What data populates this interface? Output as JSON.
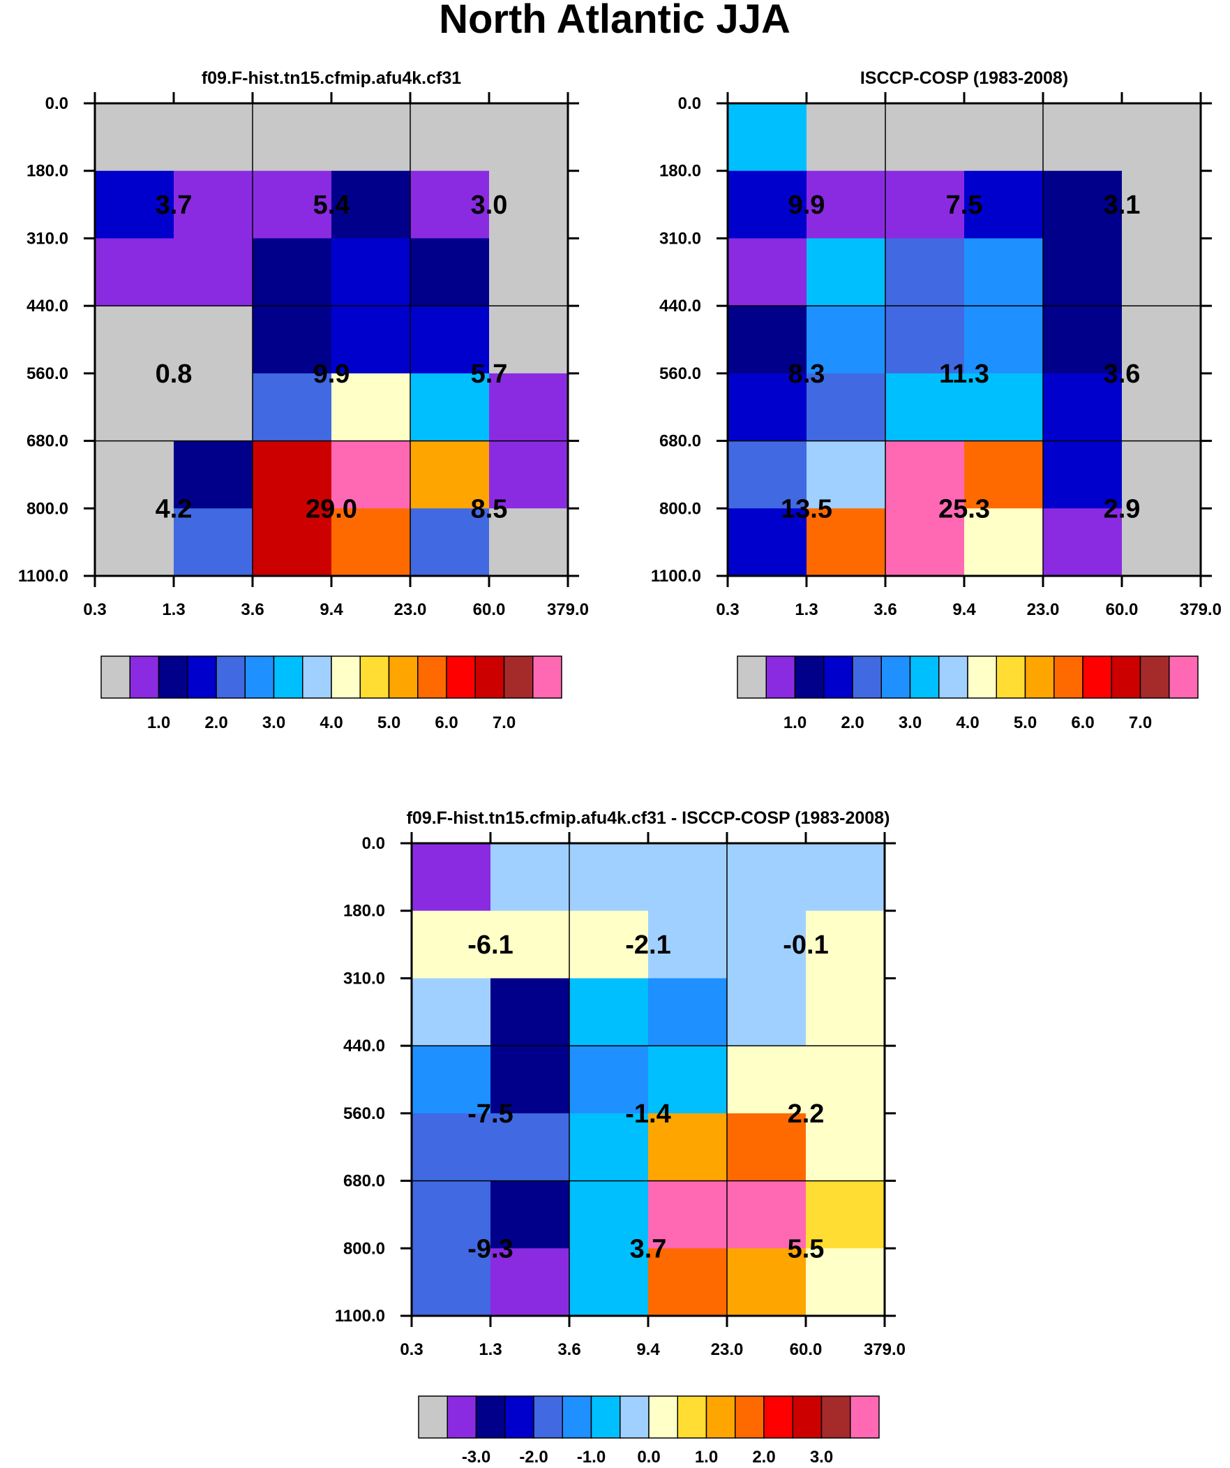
{
  "figure": {
    "title": "North Atlantic JJA",
    "colors": {
      "gray": "#c8c8c8",
      "violet": "#8a2be2",
      "navy": "#00008b",
      "medblue": "#0000cd",
      "royalblue": "#4169e1",
      "dodgerblue": "#1e90ff",
      "deepskyblue": "#00bfff",
      "lightskyblue": "#a0d0ff",
      "lightyellow": "#ffffc8",
      "gold": "#ffdd33",
      "orange": "#ffa500",
      "darkorange": "#ff6a00",
      "red": "#ff0000",
      "crimson": "#cd0000",
      "brown": "#a52a2a",
      "pink": "#ff69b4"
    }
  },
  "chart_data": [
    {
      "type": "heatmap",
      "id": "model",
      "title": "f09.F-hist.tn15.cfmip.afu4k.cf31",
      "xlabel": "",
      "ylabel": "",
      "x_ticks": [
        "0.3",
        "1.3",
        "3.6",
        "9.4",
        "23.0",
        "60.0",
        "379.0"
      ],
      "y_ticks": [
        "0.0",
        "180.0",
        "310.0",
        "440.0",
        "560.0",
        "680.0",
        "800.0",
        "1100.0"
      ],
      "cells": [
        [
          "gray",
          "gray",
          "gray",
          "gray",
          "gray",
          "gray"
        ],
        [
          "medblue",
          "violet",
          "violet",
          "navy",
          "violet",
          "gray"
        ],
        [
          "violet",
          "violet",
          "navy",
          "medblue",
          "navy",
          "gray"
        ],
        [
          "gray",
          "gray",
          "navy",
          "medblue",
          "medblue",
          "gray"
        ],
        [
          "gray",
          "gray",
          "royalblue",
          "lightyellow",
          "deepskyblue",
          "violet"
        ],
        [
          "gray",
          "navy",
          "crimson",
          "pink",
          "orange",
          "violet"
        ],
        [
          "gray",
          "royalblue",
          "crimson",
          "darkorange",
          "royalblue",
          "gray"
        ]
      ],
      "group_values": [
        [
          "3.7",
          "5.4",
          "3.0"
        ],
        [
          "0.8",
          "9.9",
          "5.7"
        ],
        [
          "4.2",
          "29.0",
          "8.5"
        ]
      ],
      "colorbar": {
        "colors": [
          "gray",
          "violet",
          "navy",
          "medblue",
          "royalblue",
          "dodgerblue",
          "deepskyblue",
          "lightskyblue",
          "lightyellow",
          "gold",
          "orange",
          "darkorange",
          "red",
          "crimson",
          "brown",
          "pink"
        ],
        "labels": [
          "1.0",
          "2.0",
          "3.0",
          "4.0",
          "5.0",
          "6.0",
          "7.0"
        ]
      }
    },
    {
      "type": "heatmap",
      "id": "obs",
      "title": "ISCCP-COSP (1983-2008)",
      "xlabel": "",
      "ylabel": "",
      "x_ticks": [
        "0.3",
        "1.3",
        "3.6",
        "9.4",
        "23.0",
        "60.0",
        "379.0"
      ],
      "y_ticks": [
        "0.0",
        "180.0",
        "310.0",
        "440.0",
        "560.0",
        "680.0",
        "800.0",
        "1100.0"
      ],
      "cells": [
        [
          "deepskyblue",
          "gray",
          "gray",
          "gray",
          "gray",
          "gray"
        ],
        [
          "medblue",
          "violet",
          "violet",
          "medblue",
          "navy",
          "gray"
        ],
        [
          "violet",
          "deepskyblue",
          "royalblue",
          "dodgerblue",
          "navy",
          "gray"
        ],
        [
          "navy",
          "dodgerblue",
          "royalblue",
          "dodgerblue",
          "navy",
          "gray"
        ],
        [
          "medblue",
          "royalblue",
          "deepskyblue",
          "deepskyblue",
          "medblue",
          "gray"
        ],
        [
          "royalblue",
          "lightskyblue",
          "pink",
          "darkorange",
          "medblue",
          "gray"
        ],
        [
          "medblue",
          "darkorange",
          "pink",
          "lightyellow",
          "violet",
          "gray"
        ]
      ],
      "group_values": [
        [
          "9.9",
          "7.5",
          "3.1"
        ],
        [
          "8.3",
          "11.3",
          "3.6"
        ],
        [
          "13.5",
          "25.3",
          "2.9"
        ]
      ],
      "colorbar": {
        "colors": [
          "gray",
          "violet",
          "navy",
          "medblue",
          "royalblue",
          "dodgerblue",
          "deepskyblue",
          "lightskyblue",
          "lightyellow",
          "gold",
          "orange",
          "darkorange",
          "red",
          "crimson",
          "brown",
          "pink"
        ],
        "labels": [
          "1.0",
          "2.0",
          "3.0",
          "4.0",
          "5.0",
          "6.0",
          "7.0"
        ]
      }
    },
    {
      "type": "heatmap",
      "id": "diff",
      "title": "f09.F-hist.tn15.cfmip.afu4k.cf31 - ISCCP-COSP (1983-2008)",
      "xlabel": "",
      "ylabel": "",
      "x_ticks": [
        "0.3",
        "1.3",
        "3.6",
        "9.4",
        "23.0",
        "60.0",
        "379.0"
      ],
      "y_ticks": [
        "0.0",
        "180.0",
        "310.0",
        "440.0",
        "560.0",
        "680.0",
        "800.0",
        "1100.0"
      ],
      "cells": [
        [
          "violet",
          "lightskyblue",
          "lightskyblue",
          "lightskyblue",
          "lightskyblue",
          "lightskyblue"
        ],
        [
          "lightyellow",
          "lightyellow",
          "lightyellow",
          "lightskyblue",
          "lightskyblue",
          "lightyellow"
        ],
        [
          "lightskyblue",
          "navy",
          "deepskyblue",
          "dodgerblue",
          "lightskyblue",
          "lightyellow"
        ],
        [
          "dodgerblue",
          "navy",
          "dodgerblue",
          "deepskyblue",
          "lightyellow",
          "lightyellow"
        ],
        [
          "royalblue",
          "royalblue",
          "deepskyblue",
          "orange",
          "darkorange",
          "lightyellow"
        ],
        [
          "royalblue",
          "navy",
          "deepskyblue",
          "pink",
          "pink",
          "gold"
        ],
        [
          "royalblue",
          "violet",
          "deepskyblue",
          "darkorange",
          "orange",
          "lightyellow"
        ]
      ],
      "group_values": [
        [
          "-6.1",
          "-2.1",
          "-0.1"
        ],
        [
          "-7.5",
          "-1.4",
          "2.2"
        ],
        [
          "-9.3",
          "3.7",
          "5.5"
        ]
      ],
      "colorbar": {
        "colors": [
          "gray",
          "violet",
          "navy",
          "medblue",
          "royalblue",
          "dodgerblue",
          "deepskyblue",
          "lightskyblue",
          "lightyellow",
          "gold",
          "orange",
          "darkorange",
          "red",
          "crimson",
          "brown",
          "pink"
        ],
        "labels": [
          "-3.0",
          "-2.0",
          "-1.0",
          "0.0",
          "1.0",
          "2.0",
          "3.0"
        ]
      }
    }
  ]
}
